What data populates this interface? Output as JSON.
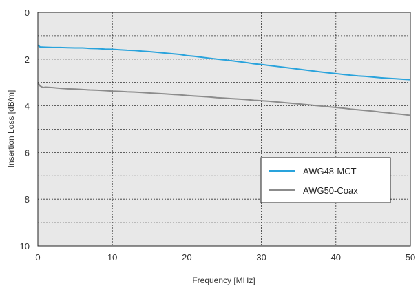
{
  "chart_data": {
    "type": "line",
    "title": "",
    "xlabel": "Frequency [MHz]",
    "ylabel": "Insertion Loss [dB/m]",
    "xlim": [
      0,
      50
    ],
    "ylim": [
      0,
      10
    ],
    "y_inverted": true,
    "grid": true,
    "x_ticks": [
      "0",
      "10",
      "20",
      "30",
      "40",
      "50"
    ],
    "y_ticks": [
      "0",
      "2",
      "4",
      "6",
      "8",
      "10"
    ],
    "legend_position": "lower-right",
    "series": [
      {
        "name": "AWG48-MCT",
        "color": "#29a3dc",
        "x": [
          0,
          0.3,
          1,
          2,
          3,
          4,
          5,
          6,
          7,
          8,
          9,
          10,
          11,
          12,
          13,
          14,
          15,
          16,
          17,
          18,
          19,
          20,
          21,
          22,
          23,
          24,
          25,
          26,
          27,
          28,
          29,
          30,
          31,
          32,
          33,
          34,
          35,
          36,
          37,
          38,
          39,
          40,
          41,
          42,
          43,
          44,
          45,
          46,
          47,
          48,
          49,
          50
        ],
        "y": [
          1.4,
          1.48,
          1.49,
          1.5,
          1.5,
          1.51,
          1.52,
          1.52,
          1.54,
          1.55,
          1.57,
          1.58,
          1.6,
          1.62,
          1.63,
          1.66,
          1.68,
          1.71,
          1.74,
          1.77,
          1.8,
          1.85,
          1.88,
          1.92,
          1.96,
          2.0,
          2.03,
          2.07,
          2.11,
          2.15,
          2.2,
          2.23,
          2.27,
          2.31,
          2.35,
          2.39,
          2.43,
          2.47,
          2.51,
          2.55,
          2.59,
          2.62,
          2.66,
          2.69,
          2.72,
          2.74,
          2.77,
          2.8,
          2.82,
          2.84,
          2.86,
          2.88
        ]
      },
      {
        "name": "AWG50-Coax",
        "color": "#8c8c8c",
        "x": [
          0,
          0.3,
          0.7,
          1,
          2,
          3,
          4,
          5,
          6,
          7,
          8,
          9,
          10,
          11,
          12,
          13,
          14,
          15,
          16,
          17,
          18,
          19,
          20,
          21,
          22,
          23,
          24,
          25,
          26,
          27,
          28,
          29,
          30,
          31,
          32,
          33,
          34,
          35,
          36,
          37,
          38,
          39,
          40,
          41,
          42,
          43,
          44,
          45,
          46,
          47,
          48,
          49,
          50
        ],
        "y": [
          3.02,
          3.15,
          3.22,
          3.2,
          3.22,
          3.25,
          3.27,
          3.28,
          3.3,
          3.32,
          3.33,
          3.35,
          3.37,
          3.38,
          3.4,
          3.41,
          3.43,
          3.45,
          3.47,
          3.49,
          3.51,
          3.53,
          3.56,
          3.58,
          3.6,
          3.62,
          3.65,
          3.67,
          3.69,
          3.71,
          3.73,
          3.76,
          3.78,
          3.8,
          3.83,
          3.86,
          3.89,
          3.92,
          3.95,
          3.98,
          4.01,
          4.04,
          4.07,
          4.1,
          4.14,
          4.17,
          4.2,
          4.23,
          4.27,
          4.3,
          4.34,
          4.37,
          4.41
        ]
      }
    ]
  }
}
